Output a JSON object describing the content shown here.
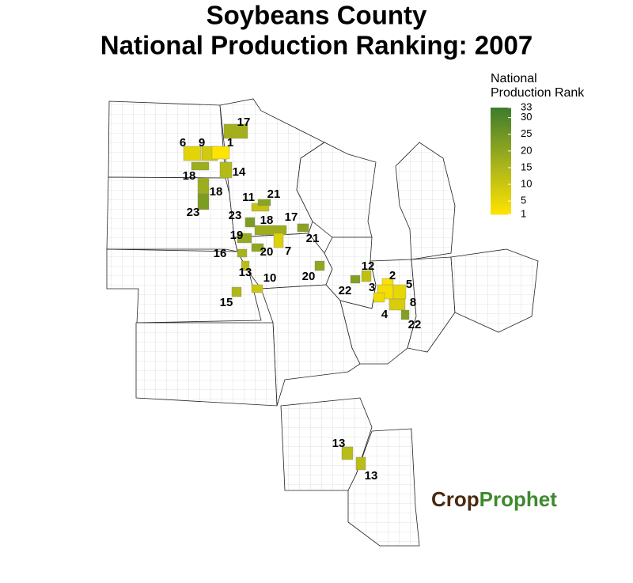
{
  "title": [
    "Soybeans County",
    "National Production Ranking: 2007"
  ],
  "legend": {
    "title": [
      "National",
      "Production Rank"
    ],
    "range": [
      1,
      33
    ],
    "ticks": [
      33,
      30,
      25,
      20,
      15,
      10,
      5,
      1
    ],
    "colors": [
      "#ffe400",
      "#a3b01c",
      "#3d7c2c"
    ]
  },
  "counties": [
    {
      "rank": 17
    },
    {
      "rank": 6
    },
    {
      "rank": 9
    },
    {
      "rank": 1
    },
    {
      "rank": 18
    },
    {
      "rank": 14
    },
    {
      "rank": 18
    },
    {
      "rank": 23
    },
    {
      "rank": 11
    },
    {
      "rank": 21
    },
    {
      "rank": 23
    },
    {
      "rank": 18
    },
    {
      "rank": 17
    },
    {
      "rank": 19
    },
    {
      "rank": 21
    },
    {
      "rank": 16
    },
    {
      "rank": 20
    },
    {
      "rank": 7
    },
    {
      "rank": 13
    },
    {
      "rank": 10
    },
    {
      "rank": 20
    },
    {
      "rank": 15
    },
    {
      "rank": 12
    },
    {
      "rank": 2
    },
    {
      "rank": 22
    },
    {
      "rank": 3
    },
    {
      "rank": 5
    },
    {
      "rank": 8
    },
    {
      "rank": 4
    },
    {
      "rank": 22
    },
    {
      "rank": 13
    },
    {
      "rank": 13
    }
  ],
  "logo": [
    "Crop",
    "Prophet"
  ]
}
